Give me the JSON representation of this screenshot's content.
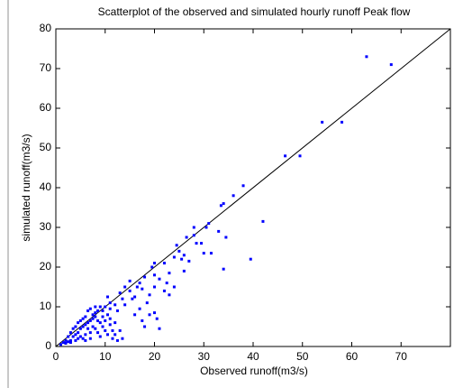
{
  "chart_data": {
    "type": "scatter",
    "title": "Scatterplot of the observed and simulated hourly runoff Peak flow",
    "xlabel": "Observed runoff(m3/s)",
    "ylabel": "simulated runoff(m3/s)",
    "color": "#0000ff",
    "x": [
      63,
      68,
      54,
      58,
      46.5,
      49.5,
      38,
      36,
      42,
      39.5,
      33,
      34.5,
      33.5,
      34,
      31,
      30.5,
      29.5,
      31.5,
      34,
      28,
      28,
      26.5,
      25,
      24,
      24.5,
      27,
      26,
      22,
      20,
      19.5,
      20,
      21,
      22.5,
      18,
      17,
      17.5,
      16.5,
      15,
      14,
      15.5,
      13.5,
      14,
      12,
      17,
      18.5,
      19,
      17.5,
      18,
      20,
      21,
      20.5,
      16,
      13,
      12,
      11.5,
      12.5,
      13.5,
      10.5,
      11,
      10,
      9.5,
      10.5,
      11,
      9,
      8.5,
      8,
      7,
      6.5,
      7.5,
      6,
      5.5,
      5,
      4.5,
      4,
      3.5,
      3,
      2.5,
      2,
      1.5,
      1,
      2,
      3,
      3.5,
      4,
      4.5,
      5,
      5.5,
      6,
      6.5,
      7,
      7.5,
      8,
      8.5,
      9,
      9.5,
      10,
      10.5,
      11,
      12,
      11.5,
      6,
      5,
      7,
      8,
      4,
      3,
      5.5,
      6.5,
      7.5,
      8.5,
      9,
      2.5,
      4.5,
      6,
      7,
      20,
      19,
      23,
      15,
      16,
      13,
      12.5,
      11,
      9.5,
      8,
      10,
      24,
      22,
      26,
      25.5,
      30,
      23,
      28.5
    ],
    "values": [
      73,
      71,
      56.5,
      56.5,
      48,
      48,
      40.5,
      38,
      31.5,
      22,
      29,
      27.5,
      35.5,
      36,
      31,
      30,
      26,
      23.5,
      19.5,
      30,
      28,
      27.5,
      24,
      22.5,
      25.5,
      21.5,
      19,
      21,
      21,
      20,
      18,
      17,
      16,
      17.5,
      16,
      14.5,
      15,
      16.5,
      15,
      12,
      12,
      10.5,
      10.5,
      9.5,
      11,
      8,
      6.5,
      5,
      8.5,
      4.5,
      7,
      8,
      4,
      3,
      2,
      1.5,
      2,
      12.5,
      11,
      10,
      9,
      8,
      7,
      10,
      9,
      8.5,
      9.5,
      9,
      8,
      7.5,
      7,
      6.5,
      6,
      5,
      4.5,
      3.5,
      2.5,
      1.5,
      1,
      0.5,
      0.8,
      1.5,
      2.5,
      3,
      3.5,
      4.5,
      5,
      5.5,
      6,
      6.5,
      7,
      7.5,
      6.5,
      6,
      5,
      4,
      3,
      5.5,
      6,
      4,
      3,
      2.5,
      3.5,
      4.5,
      1.5,
      1,
      2,
      4.5,
      5,
      3.5,
      2.5,
      1.2,
      2,
      1.5,
      2,
      15,
      13,
      13,
      14,
      12.5,
      13.5,
      9,
      9.5,
      7.5,
      10,
      6.5,
      15,
      14,
      23,
      22,
      23.5,
      18.5,
      26
    ],
    "line": {
      "x": [
        0,
        80
      ],
      "y": [
        0,
        80
      ],
      "color": "#000000"
    },
    "xlim": [
      0,
      80
    ],
    "xticks": [
      0,
      10,
      20,
      30,
      40,
      50,
      60,
      70
    ],
    "ylim": [
      0,
      80
    ],
    "yticks": [
      0,
      10,
      20,
      30,
      40,
      50,
      60,
      70,
      80
    ]
  }
}
